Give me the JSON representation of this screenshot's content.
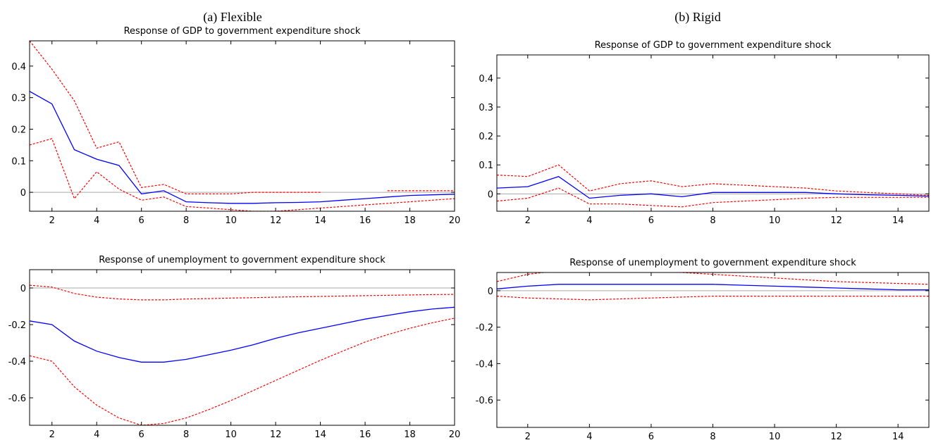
{
  "figure": {
    "col_a_label": "(a) Flexible",
    "col_b_label": "(b) Rigid"
  },
  "chart_data": [
    {
      "type": "line",
      "panel": "flexible-gdp",
      "title": "Response of GDP to government expenditure shock",
      "xlim": [
        1,
        20
      ],
      "ylim": [
        -0.06,
        0.48
      ],
      "xticks": [
        2,
        4,
        6,
        8,
        10,
        12,
        14,
        16,
        18,
        20
      ],
      "xtick_labels": [
        "2",
        "4",
        "6",
        "8",
        "10",
        "12",
        "14",
        "16",
        "18",
        "20"
      ],
      "yticks": [
        0,
        0.1,
        0.2,
        0.3,
        0.4
      ],
      "ytick_labels": [
        "0",
        "0.1",
        "0.2",
        "0.3",
        "0.4"
      ],
      "zero_line": true,
      "colors": {
        "response": "#0000ff",
        "band": "#ff0000",
        "zero": "#aaaaaa"
      },
      "x": [
        1,
        2,
        3,
        4,
        5,
        6,
        7,
        8,
        9,
        10,
        11,
        12,
        13,
        14,
        15,
        16,
        17,
        18,
        19,
        20
      ],
      "series": [
        {
          "role": "response",
          "values": [
            0.32,
            0.28,
            0.135,
            0.105,
            0.085,
            -0.005,
            0.005,
            -0.03,
            -0.033,
            -0.035,
            -0.035,
            -0.033,
            -0.032,
            -0.03,
            -0.025,
            -0.02,
            -0.015,
            -0.01,
            -0.008,
            -0.006
          ]
        },
        {
          "role": "upper",
          "values": [
            0.48,
            0.39,
            0.29,
            0.14,
            0.16,
            0.015,
            0.025,
            -0.005,
            -0.005,
            -0.005,
            0.0,
            0.0,
            0.0,
            0.0,
            null,
            null,
            0.005,
            0.005,
            0.005,
            0.005
          ]
        },
        {
          "role": "lower",
          "values": [
            0.15,
            0.17,
            -0.02,
            0.065,
            0.01,
            -0.025,
            -0.015,
            -0.045,
            -0.05,
            -0.055,
            -0.06,
            -0.06,
            -0.055,
            -0.05,
            -0.045,
            -0.04,
            -0.035,
            -0.03,
            -0.025,
            -0.02
          ]
        }
      ]
    },
    {
      "type": "line",
      "panel": "flexible-unemployment",
      "title": "Response of unemployment to government expenditure shock",
      "xlim": [
        1,
        20
      ],
      "ylim": [
        -0.75,
        0.1
      ],
      "xticks": [
        2,
        4,
        6,
        8,
        10,
        12,
        14,
        16,
        18,
        20
      ],
      "xtick_labels": [
        "2",
        "4",
        "6",
        "8",
        "10",
        "12",
        "14",
        "16",
        "18",
        "20"
      ],
      "yticks": [
        0,
        -0.2,
        -0.4,
        -0.6
      ],
      "ytick_labels": [
        "0",
        "-0.2",
        "-0.4",
        "-0.6"
      ],
      "zero_line": true,
      "colors": {
        "response": "#0000ff",
        "band": "#ff0000",
        "zero": "#aaaaaa"
      },
      "x": [
        1,
        2,
        3,
        4,
        5,
        6,
        7,
        8,
        9,
        10,
        11,
        12,
        13,
        14,
        15,
        16,
        17,
        18,
        19,
        20
      ],
      "series": [
        {
          "role": "response",
          "values": [
            -0.18,
            -0.2,
            -0.29,
            -0.345,
            -0.38,
            -0.405,
            -0.405,
            -0.39,
            -0.365,
            -0.34,
            -0.31,
            -0.275,
            -0.245,
            -0.22,
            -0.195,
            -0.17,
            -0.15,
            -0.13,
            -0.115,
            -0.105
          ]
        },
        {
          "role": "upper",
          "values": [
            0.015,
            0.005,
            -0.03,
            -0.05,
            -0.06,
            -0.065,
            -0.065,
            -0.06,
            -0.058,
            -0.055,
            -0.053,
            -0.05,
            -0.048,
            -0.046,
            -0.044,
            -0.042,
            -0.04,
            -0.038,
            -0.036,
            -0.035
          ]
        },
        {
          "role": "lower",
          "values": [
            -0.37,
            -0.4,
            -0.54,
            -0.64,
            -0.71,
            -0.75,
            -0.74,
            -0.71,
            -0.665,
            -0.615,
            -0.56,
            -0.505,
            -0.45,
            -0.395,
            -0.345,
            -0.295,
            -0.255,
            -0.22,
            -0.19,
            -0.165
          ]
        }
      ]
    },
    {
      "type": "line",
      "panel": "rigid-gdp",
      "title": "Response of GDP to government expenditure shock",
      "xlim": [
        1,
        15
      ],
      "ylim": [
        -0.06,
        0.48
      ],
      "xticks": [
        2,
        4,
        6,
        8,
        10,
        12,
        14
      ],
      "xtick_labels": [
        "2",
        "4",
        "6",
        "8",
        "10",
        "12",
        "14"
      ],
      "yticks": [
        0,
        0.1,
        0.2,
        0.3,
        0.4
      ],
      "ytick_labels": [
        "0",
        "0.1",
        "0.2",
        "0.3",
        "0.4"
      ],
      "zero_line": true,
      "colors": {
        "response": "#0000ff",
        "band": "#ff0000",
        "zero": "#aaaaaa"
      },
      "x": [
        1,
        2,
        3,
        4,
        5,
        6,
        7,
        8,
        9,
        10,
        11,
        12,
        13,
        14,
        15
      ],
      "series": [
        {
          "role": "response",
          "values": [
            0.02,
            0.025,
            0.06,
            -0.015,
            -0.005,
            0.0,
            -0.01,
            0.005,
            0.005,
            0.005,
            0.005,
            0.0,
            -0.003,
            -0.005,
            -0.008
          ]
        },
        {
          "role": "upper",
          "values": [
            0.065,
            0.06,
            0.1,
            0.01,
            0.035,
            0.045,
            0.025,
            0.035,
            0.03,
            0.025,
            0.02,
            0.01,
            0.005,
            0.0,
            -0.005
          ]
        },
        {
          "role": "lower",
          "values": [
            -0.025,
            -0.015,
            0.02,
            -0.035,
            -0.035,
            -0.04,
            -0.045,
            -0.03,
            -0.025,
            -0.02,
            -0.015,
            -0.012,
            -0.012,
            -0.012,
            -0.012
          ]
        }
      ]
    },
    {
      "type": "line",
      "panel": "rigid-unemployment",
      "title": "Response of unemployment to government expenditure shock",
      "xlim": [
        1,
        15
      ],
      "ylim": [
        -0.75,
        0.1
      ],
      "xticks": [
        2,
        4,
        6,
        8,
        10,
        12,
        14
      ],
      "xtick_labels": [
        "2",
        "4",
        "6",
        "8",
        "10",
        "12",
        "14"
      ],
      "yticks": [
        0,
        -0.2,
        -0.4,
        -0.6
      ],
      "ytick_labels": [
        "0",
        "-0.2",
        "-0.4",
        "-0.6"
      ],
      "zero_line": true,
      "colors": {
        "response": "#0000ff",
        "band": "#ff0000",
        "zero": "#aaaaaa"
      },
      "x": [
        1,
        2,
        3,
        4,
        5,
        6,
        7,
        8,
        9,
        10,
        11,
        12,
        13,
        14,
        15
      ],
      "series": [
        {
          "role": "response",
          "values": [
            0.01,
            0.025,
            0.035,
            0.035,
            0.035,
            0.035,
            0.035,
            0.035,
            0.03,
            0.025,
            0.02,
            0.015,
            0.01,
            0.005,
            0.005
          ]
        },
        {
          "role": "upper",
          "values": [
            0.05,
            0.09,
            0.11,
            0.11,
            0.11,
            0.105,
            0.1,
            0.09,
            0.08,
            0.07,
            0.06,
            0.05,
            0.045,
            0.04,
            0.035
          ]
        },
        {
          "role": "lower",
          "values": [
            -0.03,
            -0.04,
            -0.045,
            -0.05,
            -0.045,
            -0.04,
            -0.035,
            -0.03,
            -0.03,
            -0.03,
            -0.03,
            -0.03,
            -0.03,
            -0.03,
            -0.03
          ]
        }
      ]
    }
  ]
}
